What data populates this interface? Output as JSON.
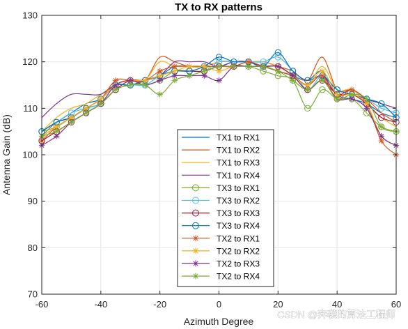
{
  "chart_data": {
    "type": "line",
    "title": "TX to RX patterns",
    "xlabel": "Azimuth Degree",
    "ylabel": "Antenna Gain (dB)",
    "xlim": [
      -60,
      60
    ],
    "ylim": [
      70,
      130
    ],
    "xticks": [
      -60,
      -40,
      -20,
      0,
      20,
      40,
      60
    ],
    "yticks": [
      70,
      80,
      90,
      100,
      110,
      120,
      130
    ],
    "grid": true,
    "legend_position": "bottom-center",
    "x": [
      -60,
      -55,
      -50,
      -45,
      -40,
      -35,
      -30,
      -25,
      -20,
      -15,
      -10,
      -5,
      0,
      5,
      10,
      15,
      20,
      25,
      30,
      35,
      40,
      45,
      50,
      55,
      60
    ],
    "series": [
      {
        "name": "TX1 to RX1",
        "color": "#0072bd",
        "marker": "none",
        "values": [
          105,
          107,
          109,
          111,
          112,
          115,
          116,
          116,
          117,
          119,
          119,
          119,
          119,
          120,
          120,
          119,
          118,
          117,
          116,
          118,
          113,
          112,
          111,
          109,
          108
        ]
      },
      {
        "name": "TX1 to RX2",
        "color": "#d95319",
        "marker": "none",
        "values": [
          104,
          107,
          108,
          110,
          112,
          115,
          116,
          116,
          121,
          120,
          119,
          119,
          120,
          120,
          120,
          120,
          119,
          118,
          116,
          121,
          114,
          114,
          112,
          109,
          107
        ]
      },
      {
        "name": "TX1 to RX3",
        "color": "#edb120",
        "marker": "none",
        "values": [
          105,
          108,
          110,
          111,
          113,
          115,
          115,
          116,
          120,
          119,
          119,
          119,
          120,
          120,
          120,
          120,
          119,
          117,
          115,
          119,
          114,
          114,
          111,
          108,
          106
        ]
      },
      {
        "name": "TX1 to RX4",
        "color": "#7e2f8e",
        "marker": "none",
        "values": [
          108,
          111,
          113,
          113,
          113,
          115,
          115,
          116,
          117,
          120,
          120,
          120,
          119,
          120,
          120,
          119,
          119,
          117,
          115,
          117,
          113,
          114,
          112,
          111,
          110
        ]
      },
      {
        "name": "TX3 to RX1",
        "color": "#77ac30",
        "marker": "circle",
        "values": [
          105,
          106,
          108,
          110,
          111,
          114,
          115,
          115,
          116,
          118,
          118,
          118,
          119,
          119,
          119,
          118,
          117,
          116,
          110,
          114,
          112,
          112,
          109,
          106,
          105
        ]
      },
      {
        "name": "TX3 to RX2",
        "color": "#4dbeee",
        "marker": "circle",
        "values": [
          105,
          107,
          109,
          110,
          111,
          114,
          115,
          115,
          117,
          118,
          118,
          118,
          120,
          120,
          120,
          120,
          121,
          118,
          114,
          117,
          114,
          113,
          112,
          110,
          109
        ]
      },
      {
        "name": "TX3 to RX3",
        "color": "#a2142f",
        "marker": "circle",
        "values": [
          103,
          105,
          107,
          109,
          111,
          114,
          116,
          116,
          117,
          118,
          118,
          118,
          119,
          119,
          120,
          119,
          119,
          117,
          114,
          116,
          113,
          113,
          111,
          108,
          107
        ]
      },
      {
        "name": "TX3 to RX4",
        "color": "#0072bd",
        "marker": "circle",
        "values": [
          105,
          107,
          108,
          110,
          112,
          115,
          115,
          116,
          117,
          118,
          118,
          119,
          121,
          120,
          120,
          119,
          122,
          118,
          116,
          117,
          114,
          113,
          112,
          111,
          108
        ]
      },
      {
        "name": "TX2 to RX1",
        "color": "#d95319",
        "marker": "asterisk",
        "values": [
          103,
          106,
          108,
          110,
          112,
          116,
          116,
          116,
          118,
          119,
          119,
          119,
          119,
          119,
          120,
          119,
          118,
          117,
          115,
          117,
          112,
          114,
          111,
          103,
          100
        ]
      },
      {
        "name": "TX2 to RX2",
        "color": "#edb120",
        "marker": "asterisk",
        "values": [
          104,
          106,
          108,
          110,
          112,
          115,
          116,
          116,
          117,
          118,
          119,
          119,
          118,
          119,
          119,
          119,
          119,
          117,
          115,
          118,
          113,
          113,
          111,
          104,
          102
        ]
      },
      {
        "name": "TX2 to RX3",
        "color": "#7e2f8e",
        "marker": "asterisk",
        "values": [
          102,
          104,
          107,
          109,
          111,
          115,
          116,
          115,
          116,
          117,
          117,
          117,
          116,
          119,
          119,
          119,
          119,
          117,
          114,
          116,
          112,
          112,
          110,
          104,
          102
        ]
      },
      {
        "name": "TX2 to RX4",
        "color": "#77ac30",
        "marker": "asterisk",
        "values": [
          104,
          105,
          107,
          109,
          111,
          114,
          115,
          115,
          113,
          116,
          117,
          118,
          119,
          119,
          119,
          119,
          118,
          116,
          114,
          116,
          112,
          113,
          112,
          106,
          105
        ]
      }
    ]
  },
  "watermark": "CSDN @奔袭的算法工程师"
}
